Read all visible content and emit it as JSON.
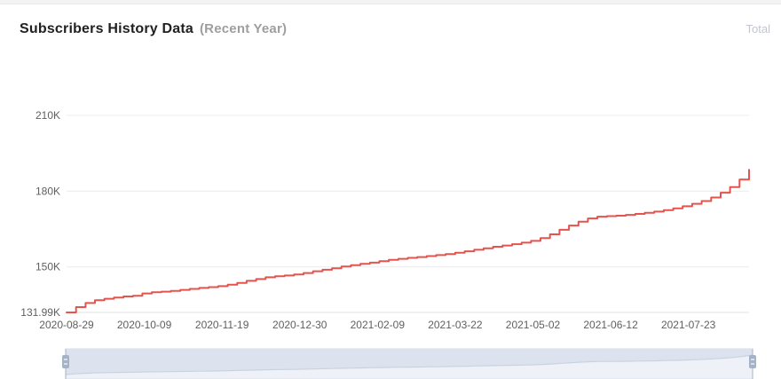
{
  "page": {
    "title": "Subscribers History Data",
    "subtitle": "(Recent Year)",
    "legend_label": "Total"
  },
  "colors": {
    "line": "#e4544e",
    "grid": "#ececec",
    "axis": "#e0e0e0",
    "tick_text": "#5f5f5f",
    "slider_bg": "#eef1f7",
    "slider_area": "#dce3ee",
    "slider_line": "#c9d3e0",
    "slider_border": "#d8dee9",
    "slider_handle": "#a6b2c5",
    "slider_handle_stripe": "#eef2f8"
  },
  "chart_data": {
    "type": "line",
    "step": true,
    "title": "Subscribers History Data (Recent Year)",
    "unit": "K",
    "grid": true,
    "legend_position": "top-right",
    "ylim": [
      131.99,
      210
    ],
    "total_days": 360,
    "yticks": [
      {
        "label": "131.99K",
        "value": 131.99
      },
      {
        "label": "150K",
        "value": 150
      },
      {
        "label": "180K",
        "value": 180
      },
      {
        "label": "210K",
        "value": 210
      }
    ],
    "xticks": [
      {
        "label": "2020-08-29",
        "day": 0
      },
      {
        "label": "2020-10-09",
        "day": 41
      },
      {
        "label": "2020-11-19",
        "day": 82
      },
      {
        "label": "2020-12-30",
        "day": 123
      },
      {
        "label": "2021-02-09",
        "day": 164
      },
      {
        "label": "2021-03-22",
        "day": 205
      },
      {
        "label": "2021-05-02",
        "day": 246
      },
      {
        "label": "2021-06-12",
        "day": 287
      },
      {
        "label": "2021-07-23",
        "day": 328
      }
    ],
    "series": [
      {
        "name": "Total",
        "color": "#e4544e",
        "x": [
          "2020-08-29",
          "2020-09-03",
          "2020-09-08",
          "2020-09-13",
          "2020-09-18",
          "2020-09-23",
          "2020-09-28",
          "2020-10-03",
          "2020-10-08",
          "2020-10-13",
          "2020-10-18",
          "2020-10-23",
          "2020-10-28",
          "2020-11-02",
          "2020-11-07",
          "2020-11-12",
          "2020-11-17",
          "2020-11-22",
          "2020-11-27",
          "2020-12-02",
          "2020-12-07",
          "2020-12-12",
          "2020-12-17",
          "2020-12-22",
          "2020-12-27",
          "2021-01-01",
          "2021-01-06",
          "2021-01-11",
          "2021-01-16",
          "2021-01-21",
          "2021-01-26",
          "2021-01-31",
          "2021-02-05",
          "2021-02-10",
          "2021-02-15",
          "2021-02-20",
          "2021-02-25",
          "2021-03-02",
          "2021-03-07",
          "2021-03-12",
          "2021-03-17",
          "2021-03-22",
          "2021-03-27",
          "2021-04-01",
          "2021-04-06",
          "2021-04-11",
          "2021-04-16",
          "2021-04-21",
          "2021-04-26",
          "2021-05-01",
          "2021-05-06",
          "2021-05-11",
          "2021-05-16",
          "2021-05-21",
          "2021-05-26",
          "2021-05-31",
          "2021-06-05",
          "2021-06-10",
          "2021-06-15",
          "2021-06-20",
          "2021-06-25",
          "2021-06-30",
          "2021-07-05",
          "2021-07-10",
          "2021-07-15",
          "2021-07-20",
          "2021-07-25",
          "2021-07-30",
          "2021-08-04",
          "2021-08-09",
          "2021-08-14",
          "2021-08-19",
          "2021-08-24"
        ],
        "values": [
          131.99,
          134.1,
          135.7,
          136.8,
          137.4,
          137.9,
          138.3,
          138.6,
          139.5,
          140.0,
          140.2,
          140.5,
          140.9,
          141.3,
          141.7,
          142.0,
          142.4,
          143.0,
          143.7,
          144.5,
          145.2,
          145.9,
          146.3,
          146.6,
          147.0,
          147.6,
          148.3,
          148.9,
          149.5,
          150.2,
          150.7,
          151.2,
          151.7,
          152.3,
          152.8,
          153.2,
          153.6,
          153.9,
          154.3,
          154.7,
          155.1,
          155.6,
          156.2,
          156.8,
          157.4,
          158.0,
          158.5,
          159.0,
          159.6,
          160.3,
          161.4,
          162.9,
          164.7,
          166.4,
          167.9,
          169.2,
          169.9,
          170.1,
          170.3,
          170.6,
          171.0,
          171.4,
          171.9,
          172.5,
          173.2,
          174.0,
          175.0,
          176.1,
          177.5,
          179.4,
          181.6,
          184.6,
          188.5
        ]
      }
    ]
  }
}
